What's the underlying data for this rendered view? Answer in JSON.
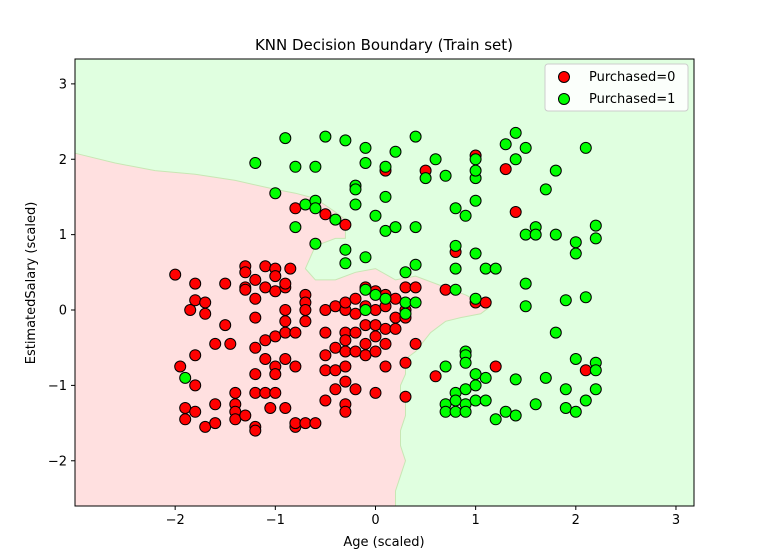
{
  "chart_data": {
    "type": "scatter",
    "title": "KNN Decision Boundary (Train set)",
    "xlabel": "Age (scaled)",
    "ylabel": "EstimatedSalary (scaled)",
    "xlim": [
      -3.0,
      3.18
    ],
    "ylim": [
      -2.6,
      3.33
    ],
    "xticks": [
      -2,
      -1,
      0,
      1,
      2,
      3
    ],
    "yticks": [
      -2,
      -1,
      0,
      1,
      2,
      3
    ],
    "xtick_labels": [
      "−2",
      "−1",
      "0",
      "1",
      "2",
      "3"
    ],
    "ytick_labels": [
      "−2",
      "−1",
      "0",
      "1",
      "2",
      "3"
    ],
    "grid": false,
    "legend_position": "top-right",
    "region_colors": {
      "class0": "#ffe0e0",
      "class1": "#e0ffe0"
    },
    "decision_boundary": [
      [
        -3.0,
        2.08
      ],
      [
        -2.6,
        1.95
      ],
      [
        -2.2,
        1.85
      ],
      [
        -1.8,
        1.8
      ],
      [
        -1.4,
        1.72
      ],
      [
        -1.0,
        1.6
      ],
      [
        -0.8,
        1.55
      ],
      [
        -0.6,
        1.48
      ],
      [
        -0.4,
        1.3
      ],
      [
        -0.3,
        1.2
      ],
      [
        -0.3,
        0.95
      ],
      [
        -0.4,
        0.95
      ],
      [
        -0.5,
        0.9
      ],
      [
        -0.6,
        0.85
      ],
      [
        -0.7,
        0.55
      ],
      [
        -0.6,
        0.4
      ],
      [
        -0.4,
        0.4
      ],
      [
        -0.2,
        0.5
      ],
      [
        0.0,
        0.55
      ],
      [
        0.2,
        0.4
      ],
      [
        0.4,
        0.45
      ],
      [
        0.6,
        0.35
      ],
      [
        0.9,
        0.2
      ],
      [
        1.05,
        0.1
      ],
      [
        1.15,
        0.1
      ],
      [
        1.15,
        0.05
      ],
      [
        1.05,
        -0.05
      ],
      [
        0.85,
        -0.1
      ],
      [
        0.7,
        -0.15
      ],
      [
        0.55,
        -0.3
      ],
      [
        0.4,
        -0.55
      ],
      [
        0.3,
        -0.65
      ],
      [
        0.3,
        -0.85
      ],
      [
        0.25,
        -1.0
      ],
      [
        0.25,
        -1.15
      ],
      [
        0.3,
        -1.2
      ],
      [
        0.3,
        -1.4
      ],
      [
        0.25,
        -1.6
      ],
      [
        0.25,
        -1.8
      ],
      [
        0.3,
        -2.0
      ],
      [
        0.25,
        -2.2
      ],
      [
        0.2,
        -2.4
      ],
      [
        0.2,
        -2.6
      ]
    ],
    "series": [
      {
        "name": "Purchased=0",
        "color": "#ff0000",
        "points": [
          [
            -2.0,
            0.47
          ],
          [
            -1.95,
            -0.75
          ],
          [
            -1.9,
            -1.3
          ],
          [
            -1.9,
            -1.45
          ],
          [
            -1.85,
            0.0
          ],
          [
            -1.8,
            0.35
          ],
          [
            -1.8,
            0.13
          ],
          [
            -1.8,
            -0.6
          ],
          [
            -1.8,
            -1.0
          ],
          [
            -1.8,
            -1.35
          ],
          [
            -1.7,
            -1.55
          ],
          [
            -1.7,
            0.1
          ],
          [
            -1.7,
            -0.05
          ],
          [
            -1.6,
            -0.45
          ],
          [
            -1.6,
            -1.25
          ],
          [
            -1.6,
            -1.5
          ],
          [
            -1.5,
            0.35
          ],
          [
            -1.5,
            -0.2
          ],
          [
            -1.45,
            -0.45
          ],
          [
            -1.4,
            -1.1
          ],
          [
            -1.4,
            -1.25
          ],
          [
            -1.4,
            -1.35
          ],
          [
            -1.4,
            -1.45
          ],
          [
            -1.3,
            -1.4
          ],
          [
            -1.3,
            0.58
          ],
          [
            -1.3,
            0.5
          ],
          [
            -1.3,
            0.3
          ],
          [
            -1.3,
            0.27
          ],
          [
            -1.2,
            -0.1
          ],
          [
            -1.2,
            -0.5
          ],
          [
            -1.2,
            -0.85
          ],
          [
            -1.2,
            -1.1
          ],
          [
            -1.2,
            -1.55
          ],
          [
            -1.2,
            -1.6
          ],
          [
            -1.2,
            0.4
          ],
          [
            -1.2,
            0.15
          ],
          [
            -1.1,
            0.58
          ],
          [
            -1.1,
            0.3
          ],
          [
            -1.1,
            -0.4
          ],
          [
            -1.1,
            -0.65
          ],
          [
            -1.1,
            -1.1
          ],
          [
            -1.05,
            -1.3
          ],
          [
            -1.0,
            0.55
          ],
          [
            -1.0,
            0.45
          ],
          [
            -1.0,
            0.25
          ],
          [
            -1.0,
            -0.35
          ],
          [
            -1.0,
            -0.75
          ],
          [
            -1.0,
            -0.85
          ],
          [
            -1.0,
            -1.1
          ],
          [
            -0.9,
            0.0
          ],
          [
            -0.9,
            -0.15
          ],
          [
            -0.9,
            -0.3
          ],
          [
            -0.9,
            -0.65
          ],
          [
            -0.9,
            -1.3
          ],
          [
            -0.9,
            0.3
          ],
          [
            -0.9,
            0.35
          ],
          [
            -0.85,
            0.55
          ],
          [
            -0.8,
            -0.3
          ],
          [
            -0.8,
            -0.75
          ],
          [
            -0.8,
            -1.55
          ],
          [
            -0.8,
            -1.5
          ],
          [
            -0.8,
            1.35
          ],
          [
            -0.7,
            0.2
          ],
          [
            -0.7,
            0.1
          ],
          [
            -0.7,
            0.0
          ],
          [
            -0.7,
            -0.15
          ],
          [
            -0.7,
            -1.5
          ],
          [
            -0.6,
            -1.5
          ],
          [
            -0.5,
            -0.3
          ],
          [
            -0.5,
            -0.6
          ],
          [
            -0.5,
            -0.8
          ],
          [
            -0.5,
            -1.2
          ],
          [
            -0.5,
            1.27
          ],
          [
            -0.5,
            0.0
          ],
          [
            -0.4,
            -0.5
          ],
          [
            -0.4,
            -0.8
          ],
          [
            -0.4,
            -1.05
          ],
          [
            -0.4,
            0.05
          ],
          [
            -0.3,
            0.0
          ],
          [
            -0.3,
            -0.3
          ],
          [
            -0.3,
            -0.4
          ],
          [
            -0.3,
            -0.55
          ],
          [
            -0.3,
            -0.75
          ],
          [
            -0.3,
            -0.95
          ],
          [
            -0.3,
            -1.25
          ],
          [
            -0.3,
            -1.35
          ],
          [
            -0.3,
            1.13
          ],
          [
            -0.3,
            0.1
          ],
          [
            -0.2,
            -0.05
          ],
          [
            -0.2,
            -0.3
          ],
          [
            -0.2,
            -0.55
          ],
          [
            -0.2,
            -1.05
          ],
          [
            -0.2,
            0.15
          ],
          [
            -0.1,
            0.3
          ],
          [
            -0.1,
            0.05
          ],
          [
            -0.1,
            -0.2
          ],
          [
            -0.1,
            -0.45
          ],
          [
            -0.1,
            -0.6
          ],
          [
            0.0,
            0.25
          ],
          [
            0.0,
            0.0
          ],
          [
            0.0,
            -0.2
          ],
          [
            0.0,
            -0.35
          ],
          [
            0.0,
            -0.55
          ],
          [
            0.0,
            -1.1
          ],
          [
            0.1,
            0.2
          ],
          [
            0.1,
            0.05
          ],
          [
            0.1,
            -0.25
          ],
          [
            0.1,
            -0.45
          ],
          [
            0.1,
            -0.75
          ],
          [
            0.1,
            1.85
          ],
          [
            0.2,
            0.15
          ],
          [
            0.2,
            -0.1
          ],
          [
            0.2,
            -0.25
          ],
          [
            0.3,
            -0.1
          ],
          [
            0.3,
            0.3
          ],
          [
            0.3,
            0.0
          ],
          [
            0.3,
            -0.7
          ],
          [
            0.3,
            -1.15
          ],
          [
            0.4,
            -0.45
          ],
          [
            0.4,
            0.3
          ],
          [
            0.5,
            1.85
          ],
          [
            0.6,
            -0.88
          ],
          [
            0.7,
            0.27
          ],
          [
            0.8,
            0.77
          ],
          [
            1.0,
            2.05
          ],
          [
            1.0,
            0.1
          ],
          [
            1.1,
            0.1
          ],
          [
            1.2,
            -0.75
          ],
          [
            1.3,
            1.87
          ],
          [
            1.4,
            1.3
          ],
          [
            2.1,
            -0.8
          ]
        ]
      },
      {
        "name": "Purchased=1",
        "color": "#00ff00",
        "points": [
          [
            -1.9,
            -0.9
          ],
          [
            -1.2,
            1.95
          ],
          [
            -1.0,
            1.55
          ],
          [
            -0.9,
            2.28
          ],
          [
            -0.8,
            1.9
          ],
          [
            -0.8,
            1.1
          ],
          [
            -0.7,
            1.4
          ],
          [
            -0.6,
            1.9
          ],
          [
            -0.6,
            1.45
          ],
          [
            -0.6,
            1.35
          ],
          [
            -0.6,
            0.88
          ],
          [
            -0.5,
            2.3
          ],
          [
            -0.4,
            1.2
          ],
          [
            -0.3,
            2.25
          ],
          [
            -0.3,
            0.8
          ],
          [
            -0.3,
            0.62
          ],
          [
            -0.2,
            1.65
          ],
          [
            -0.2,
            1.6
          ],
          [
            -0.2,
            1.4
          ],
          [
            -0.1,
            2.15
          ],
          [
            -0.1,
            1.95
          ],
          [
            -0.1,
            0.7
          ],
          [
            -0.1,
            0.27
          ],
          [
            -0.1,
            0.0
          ],
          [
            0.0,
            1.25
          ],
          [
            0.0,
            0.2
          ],
          [
            0.1,
            1.9
          ],
          [
            0.1,
            1.5
          ],
          [
            0.1,
            1.05
          ],
          [
            0.1,
            0.15
          ],
          [
            0.2,
            2.1
          ],
          [
            0.2,
            1.1
          ],
          [
            0.3,
            0.5
          ],
          [
            0.3,
            0.1
          ],
          [
            0.3,
            -0.05
          ],
          [
            0.4,
            2.3
          ],
          [
            0.4,
            1.1
          ],
          [
            0.4,
            0.6
          ],
          [
            0.4,
            0.1
          ],
          [
            0.5,
            1.75
          ],
          [
            0.6,
            2.0
          ],
          [
            0.7,
            -0.75
          ],
          [
            0.7,
            1.78
          ],
          [
            0.7,
            -1.25
          ],
          [
            0.7,
            -1.35
          ],
          [
            0.8,
            0.85
          ],
          [
            0.8,
            0.55
          ],
          [
            0.8,
            0.27
          ],
          [
            0.8,
            1.35
          ],
          [
            0.8,
            -1.1
          ],
          [
            0.8,
            -1.2
          ],
          [
            0.8,
            -1.35
          ],
          [
            0.9,
            1.25
          ],
          [
            0.9,
            -0.55
          ],
          [
            0.9,
            -0.6
          ],
          [
            0.9,
            -0.7
          ],
          [
            0.9,
            -1.05
          ],
          [
            0.9,
            -1.25
          ],
          [
            0.9,
            -1.35
          ],
          [
            1.0,
            1.75
          ],
          [
            1.0,
            1.85
          ],
          [
            1.0,
            2.0
          ],
          [
            1.0,
            1.45
          ],
          [
            1.0,
            0.75
          ],
          [
            1.0,
            0.15
          ],
          [
            1.0,
            -0.85
          ],
          [
            1.0,
            -1.0
          ],
          [
            1.0,
            -1.2
          ],
          [
            1.1,
            0.55
          ],
          [
            1.1,
            -0.9
          ],
          [
            1.1,
            -1.2
          ],
          [
            1.2,
            0.55
          ],
          [
            1.2,
            -1.45
          ],
          [
            1.3,
            2.2
          ],
          [
            1.3,
            -1.35
          ],
          [
            1.4,
            2.35
          ],
          [
            1.4,
            2.0
          ],
          [
            1.4,
            -0.92
          ],
          [
            1.4,
            -1.4
          ],
          [
            1.5,
            2.15
          ],
          [
            1.5,
            1.0
          ],
          [
            1.5,
            0.35
          ],
          [
            1.5,
            0.05
          ],
          [
            1.6,
            1.1
          ],
          [
            1.6,
            1.0
          ],
          [
            1.6,
            -1.25
          ],
          [
            1.7,
            -0.9
          ],
          [
            1.7,
            1.6
          ],
          [
            1.8,
            1.85
          ],
          [
            1.8,
            1.0
          ],
          [
            1.8,
            -0.3
          ],
          [
            1.9,
            0.13
          ],
          [
            1.9,
            -1.05
          ],
          [
            1.9,
            -1.3
          ],
          [
            2.0,
            0.9
          ],
          [
            2.0,
            0.75
          ],
          [
            2.0,
            -0.65
          ],
          [
            2.0,
            -1.35
          ],
          [
            2.1,
            0.17
          ],
          [
            2.1,
            2.15
          ],
          [
            2.1,
            -1.2
          ],
          [
            2.2,
            1.12
          ],
          [
            2.2,
            0.95
          ],
          [
            2.2,
            -0.7
          ],
          [
            2.2,
            -0.8
          ],
          [
            2.2,
            -1.05
          ]
        ]
      }
    ]
  }
}
